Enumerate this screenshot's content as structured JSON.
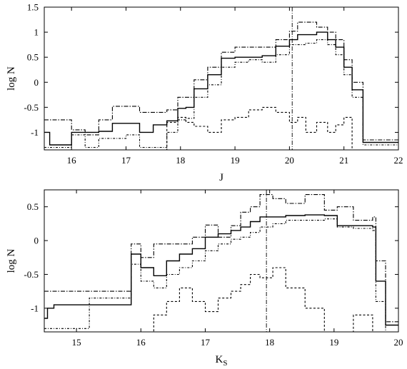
{
  "chart_data": [
    {
      "type": "line",
      "step": true,
      "xlabel": "J",
      "ylabel": "log N",
      "xlim": [
        15.5,
        22
      ],
      "ylim": [
        -1.35,
        1.5
      ],
      "x_ticks": [
        "16",
        "17",
        "18",
        "19",
        "20",
        "21",
        "22"
      ],
      "y_ticks": [
        "-1",
        "-0.5",
        "0",
        "0.5",
        "1",
        "1.5"
      ],
      "vline": 20.05,
      "series": [
        {
          "style": "solid",
          "bin_edges": [
            15.5,
            15.6,
            15.8,
            16.0,
            16.25,
            16.5,
            16.75,
            17.0,
            17.25,
            17.5,
            17.75,
            17.95,
            18.1,
            18.25,
            18.5,
            18.75,
            19.0,
            19.25,
            19.5,
            19.75,
            20.0,
            20.15,
            20.3,
            20.5,
            20.7,
            20.85,
            21.0,
            21.15,
            21.35,
            22.0
          ],
          "values": [
            -1.0,
            -1.25,
            -1.25,
            -1.0,
            -1.0,
            -0.98,
            -0.82,
            -0.82,
            -1.0,
            -0.85,
            -0.77,
            -0.52,
            -0.5,
            -0.13,
            0.15,
            0.48,
            0.5,
            0.5,
            0.53,
            0.72,
            0.85,
            0.95,
            0.95,
            1.0,
            0.85,
            0.7,
            0.3,
            -0.15,
            -1.2
          ]
        },
        {
          "style": "dash-dot-upper",
          "bin_edges": [
            15.5,
            15.6,
            15.8,
            16.0,
            16.25,
            16.5,
            16.75,
            17.0,
            17.25,
            17.5,
            17.75,
            17.95,
            18.1,
            18.25,
            18.5,
            18.75,
            19.0,
            19.25,
            19.5,
            19.75,
            20.0,
            20.15,
            20.3,
            20.5,
            20.7,
            20.85,
            21.0,
            21.15,
            21.35,
            22.0
          ],
          "values": [
            -0.75,
            -0.75,
            -0.75,
            -0.95,
            -1.05,
            -0.75,
            -0.48,
            -0.48,
            -0.6,
            -0.6,
            -0.55,
            -0.3,
            -0.3,
            0.05,
            0.3,
            0.6,
            0.7,
            0.7,
            0.7,
            0.85,
            1.02,
            1.2,
            1.2,
            1.1,
            1.0,
            0.85,
            0.45,
            0.0,
            -1.15
          ]
        },
        {
          "style": "dash-dot-lower",
          "bin_edges": [
            15.5,
            15.6,
            15.8,
            16.0,
            16.25,
            16.5,
            16.75,
            17.0,
            17.25,
            17.5,
            17.75,
            17.95,
            18.1,
            18.25,
            18.5,
            18.75,
            19.0,
            19.25,
            19.5,
            19.75,
            20.0,
            20.15,
            20.3,
            20.5,
            20.7,
            20.85,
            21.0,
            21.15,
            21.35,
            22.0
          ],
          "values": [
            -1.3,
            -1.3,
            -1.3,
            -1.05,
            -1.3,
            -1.12,
            -1.12,
            -1.05,
            -1.3,
            -1.3,
            -1.0,
            -0.75,
            -0.72,
            -0.3,
            -0.05,
            0.3,
            0.4,
            0.45,
            0.4,
            0.55,
            0.75,
            0.75,
            0.78,
            0.85,
            0.75,
            0.55,
            0.15,
            -0.3,
            -1.25
          ]
        },
        {
          "style": "dashed",
          "bin_edges": [
            15.5,
            17.5,
            17.75,
            17.95,
            18.1,
            18.25,
            18.5,
            18.75,
            19.0,
            19.25,
            19.5,
            19.75,
            20.0,
            20.15,
            20.3,
            20.5,
            20.7,
            20.85,
            21.0,
            21.15,
            22.0
          ],
          "values": [
            -1.35,
            -1.35,
            -0.8,
            -0.7,
            -0.8,
            -0.88,
            -1.0,
            -0.75,
            -0.7,
            -0.55,
            -0.5,
            -0.6,
            -0.8,
            -0.7,
            -1.0,
            -0.8,
            -1.0,
            -0.85,
            -0.7,
            -1.35
          ]
        }
      ]
    },
    {
      "type": "line",
      "step": true,
      "xlabel": "K",
      "xlabel_subscript": "S",
      "ylabel": "log N",
      "xlim": [
        14.5,
        20
      ],
      "ylim": [
        -1.35,
        0.75
      ],
      "x_ticks": [
        "15",
        "16",
        "17",
        "18",
        "19",
        "20"
      ],
      "y_ticks": [
        "-1",
        "-0.5",
        "0",
        "0.5"
      ],
      "vline": 17.95,
      "series": [
        {
          "style": "solid",
          "bin_edges": [
            14.5,
            14.55,
            14.65,
            15.2,
            15.85,
            16.0,
            16.2,
            16.4,
            16.6,
            16.8,
            17.0,
            17.2,
            17.4,
            17.55,
            17.7,
            17.85,
            18.05,
            18.25,
            18.55,
            18.85,
            19.05,
            19.3,
            19.6,
            19.65,
            19.8,
            20.0
          ],
          "values": [
            -1.15,
            -1.0,
            -0.95,
            -0.95,
            -0.2,
            -0.4,
            -0.52,
            -0.3,
            -0.2,
            -0.12,
            0.05,
            0.1,
            0.15,
            0.2,
            0.28,
            0.35,
            0.35,
            0.37,
            0.38,
            0.37,
            0.22,
            0.22,
            0.2,
            -0.6,
            -1.25
          ]
        },
        {
          "style": "dash-dot-upper",
          "bin_edges": [
            14.5,
            14.55,
            14.65,
            15.2,
            15.85,
            16.0,
            16.2,
            16.4,
            16.6,
            16.8,
            17.0,
            17.2,
            17.4,
            17.55,
            17.7,
            17.85,
            18.05,
            18.25,
            18.55,
            18.85,
            19.05,
            19.3,
            19.6,
            19.65,
            19.8,
            20.0
          ],
          "values": [
            -0.75,
            -0.75,
            -0.75,
            -0.75,
            -0.05,
            -0.25,
            -0.05,
            -0.05,
            -0.05,
            0.05,
            0.23,
            0.05,
            0.22,
            0.42,
            0.5,
            0.68,
            0.62,
            0.55,
            0.68,
            0.45,
            0.5,
            0.3,
            0.35,
            -0.3,
            -1.2
          ]
        },
        {
          "style": "dash-dot-lower",
          "bin_edges": [
            14.5,
            14.55,
            14.65,
            15.2,
            15.85,
            16.0,
            16.2,
            16.4,
            16.6,
            16.8,
            17.0,
            17.2,
            17.4,
            17.55,
            17.7,
            17.85,
            18.05,
            18.25,
            18.55,
            18.85,
            19.05,
            19.3,
            19.6,
            19.65,
            19.8,
            20.0
          ],
          "values": [
            -1.3,
            -1.3,
            -1.3,
            -0.85,
            -0.35,
            -0.6,
            -0.7,
            -0.5,
            -0.4,
            -0.3,
            -0.15,
            -0.05,
            0.02,
            0.05,
            0.12,
            0.2,
            0.25,
            0.3,
            0.3,
            0.32,
            0.2,
            0.18,
            0.15,
            -0.9,
            -1.35
          ]
        },
        {
          "style": "dashed",
          "bin_edges": [
            14.5,
            16.0,
            16.2,
            16.4,
            16.6,
            16.8,
            17.0,
            17.2,
            17.4,
            17.55,
            17.7,
            17.85,
            18.05,
            18.25,
            18.55,
            18.85,
            19.05,
            19.3,
            19.6,
            19.8,
            20.0
          ],
          "values": [
            -1.35,
            -1.35,
            -1.1,
            -0.9,
            -0.7,
            -0.9,
            -1.05,
            -0.85,
            -0.75,
            -0.65,
            -0.5,
            -0.55,
            -0.4,
            -0.7,
            -1.0,
            -1.35,
            -1.35,
            -1.1,
            -1.35,
            -1.35
          ]
        }
      ]
    }
  ]
}
